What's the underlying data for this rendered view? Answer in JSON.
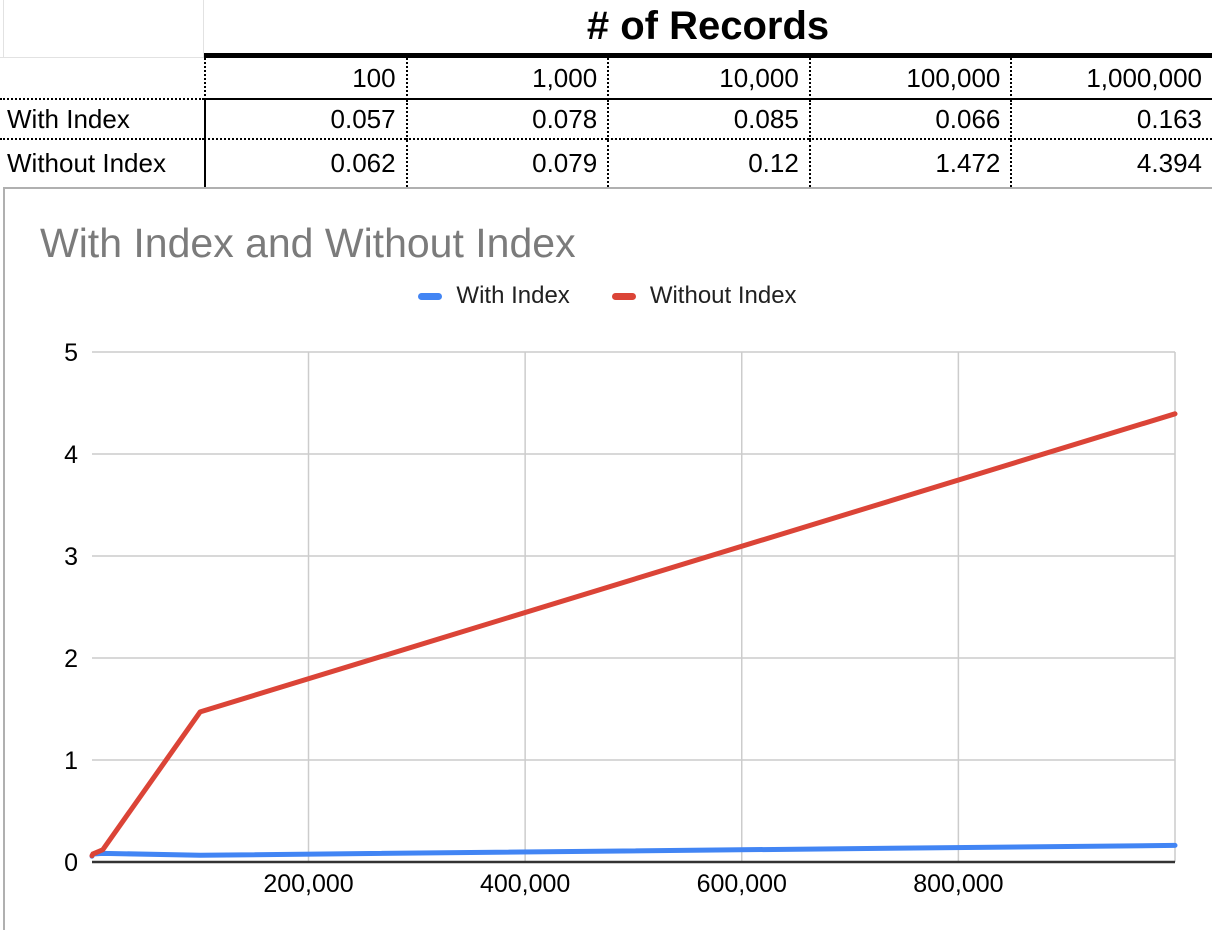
{
  "table": {
    "title": "# of Records",
    "col_headers": [
      "100",
      "1,000",
      "10,000",
      "100,000",
      "1,000,000"
    ],
    "rows": [
      {
        "label": "With Index",
        "values": [
          "0.057",
          "0.078",
          "0.085",
          "0.066",
          "0.163"
        ]
      },
      {
        "label": "Without Index",
        "values": [
          "0.062",
          "0.079",
          "0.12",
          "1.472",
          "4.394"
        ]
      }
    ]
  },
  "chart_data": {
    "type": "line",
    "title": "With Index and Without Index",
    "x": [
      100,
      1000,
      10000,
      100000,
      1000000
    ],
    "series": [
      {
        "name": "With Index",
        "color": "#4285f4",
        "values": [
          0.057,
          0.078,
          0.085,
          0.066,
          0.163
        ]
      },
      {
        "name": "Without Index",
        "color": "#db4437",
        "values": [
          0.062,
          0.079,
          0.12,
          1.472,
          4.394
        ]
      }
    ],
    "xlim": [
      100,
      1000000
    ],
    "ylim": [
      0,
      5
    ],
    "x_ticks": [
      {
        "value": 200000,
        "label": "200,000"
      },
      {
        "value": 400000,
        "label": "400,000"
      },
      {
        "value": 600000,
        "label": "600,000"
      },
      {
        "value": 800000,
        "label": "800,000"
      }
    ],
    "y_ticks": [
      {
        "value": 0,
        "label": "0"
      },
      {
        "value": 1,
        "label": "1"
      },
      {
        "value": 2,
        "label": "2"
      },
      {
        "value": 3,
        "label": "3"
      },
      {
        "value": 4,
        "label": "4"
      },
      {
        "value": 5,
        "label": "5"
      }
    ],
    "grid": true,
    "legend_position": "top",
    "title_color": "#7b7b7b"
  },
  "colors": {
    "grid_line": "#cccccc",
    "axis_line": "#333333",
    "table_border": "#000000",
    "chart_card_border": "#b0b0b0",
    "sheet_grid": "#e2e2e2"
  }
}
